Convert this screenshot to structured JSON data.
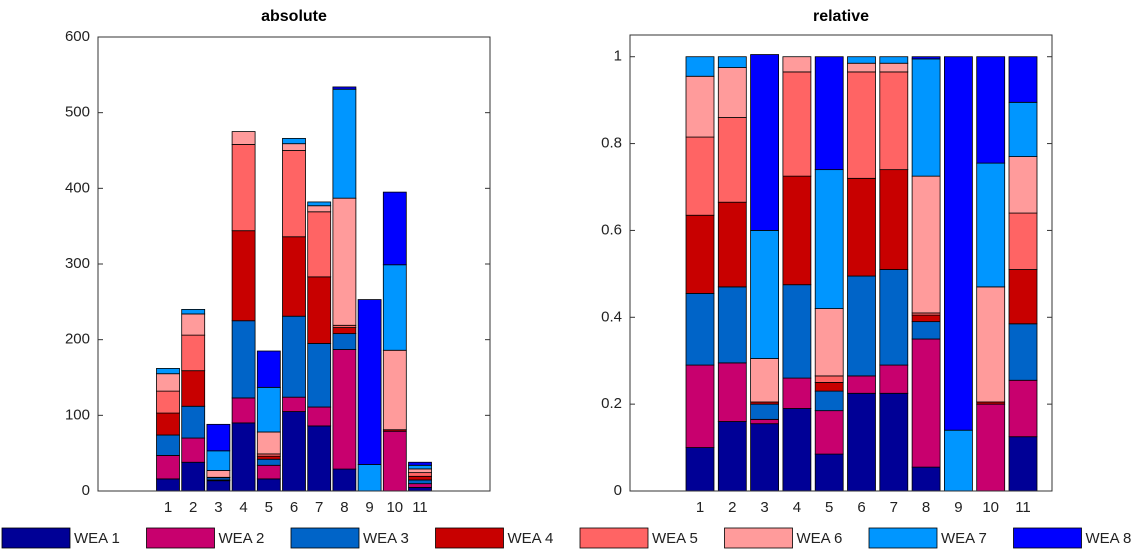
{
  "chart_data": [
    {
      "type": "stacked-bar",
      "title": "absolute",
      "categories": [
        "1",
        "2",
        "3",
        "4",
        "5",
        "6",
        "7",
        "8",
        "9",
        "10",
        "11"
      ],
      "ylim": [
        0,
        600
      ],
      "yticks": [
        0,
        100,
        200,
        300,
        400,
        500,
        600
      ],
      "series": [
        {
          "name": "WEA 1",
          "color": "#000096",
          "values": [
            16,
            38,
            13.6,
            90,
            16,
            105,
            86,
            29,
            0,
            0,
            4.8
          ]
        },
        {
          "name": "WEA 2",
          "color": "#c8006e",
          "values": [
            31,
            32,
            1,
            33,
            18,
            19,
            25,
            158,
            0,
            79,
            4.9
          ]
        },
        {
          "name": "WEA 3",
          "color": "#0064c8",
          "values": [
            27,
            42,
            3,
            102,
            8,
            107,
            84,
            21,
            0,
            0,
            4.9
          ]
        },
        {
          "name": "WEA 4",
          "color": "#c80000",
          "values": [
            29,
            47,
            0.5,
            119,
            4,
            105,
            88,
            8,
            0,
            2,
            4.8
          ]
        },
        {
          "name": "WEA 5",
          "color": "#ff6464",
          "values": [
            29,
            47,
            0,
            114,
            3,
            114,
            86,
            3,
            0,
            0,
            4.9
          ]
        },
        {
          "name": "WEA 6",
          "color": "#ff9b9b",
          "values": [
            23,
            28,
            9,
            17,
            29,
            9,
            8,
            168,
            0,
            105,
            4.9
          ]
        },
        {
          "name": "WEA 7",
          "color": "#0096ff",
          "values": [
            7,
            6,
            26,
            0,
            59,
            7,
            5,
            144,
            35,
            113,
            4.8
          ]
        },
        {
          "name": "WEA 8",
          "color": "#0000ff",
          "values": [
            0,
            0,
            35,
            0,
            48,
            0,
            0,
            3,
            218,
            96,
            4.0
          ]
        }
      ]
    },
    {
      "type": "stacked-bar",
      "title": "relative",
      "categories": [
        "1",
        "2",
        "3",
        "4",
        "5",
        "6",
        "7",
        "8",
        "9",
        "10",
        "11"
      ],
      "ylim": [
        0,
        1.05
      ],
      "yticks": [
        0,
        0.2,
        0.4,
        0.6,
        0.8,
        1
      ],
      "series": [
        {
          "color": "#000096",
          "values": [
            0.1,
            0.16,
            0.155,
            0.19,
            0.085,
            0.225,
            0.225,
            0.055,
            0,
            0,
            0.125
          ]
        },
        {
          "color": "#c8006e",
          "values": [
            0.19,
            0.135,
            0.01,
            0.07,
            0.1,
            0.04,
            0.065,
            0.295,
            0,
            0.2,
            0.13
          ]
        },
        {
          "color": "#0064c8",
          "values": [
            0.165,
            0.175,
            0.035,
            0.215,
            0.045,
            0.23,
            0.22,
            0.04,
            0,
            0,
            0.13
          ]
        },
        {
          "color": "#c80000",
          "values": [
            0.18,
            0.195,
            0.005,
            0.25,
            0.02,
            0.225,
            0.23,
            0.015,
            0,
            0.005,
            0.125
          ]
        },
        {
          "color": "#ff6464",
          "values": [
            0.18,
            0.195,
            0,
            0.24,
            0.015,
            0.245,
            0.225,
            0.005,
            0,
            0,
            0.13
          ]
        },
        {
          "color": "#ff9b9b",
          "values": [
            0.14,
            0.115,
            0.1,
            0.035,
            0.155,
            0.02,
            0.02,
            0.315,
            0,
            0.265,
            0.13
          ]
        },
        {
          "color": "#0096ff",
          "values": [
            0.045,
            0.025,
            0.295,
            0,
            0.32,
            0.015,
            0.015,
            0.27,
            0.14,
            0.285,
            0.125
          ]
        },
        {
          "color": "#0000ff",
          "values": [
            0,
            0,
            0.405,
            0,
            0.26,
            0,
            0,
            0.005,
            0.86,
            0.245,
            0.105
          ]
        }
      ]
    }
  ]
}
